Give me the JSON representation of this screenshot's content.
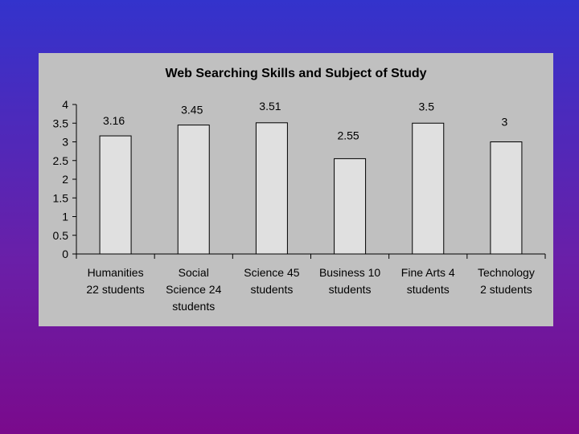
{
  "colors": {
    "panel_background": "#c0c0c0",
    "bar_fill": "#e0e0e0",
    "bar_stroke": "#000000"
  },
  "chart_data": {
    "type": "bar",
    "title": "Web Searching Skills  and Subject  of Study",
    "xlabel": "",
    "ylabel": "",
    "ylim": [
      0,
      4
    ],
    "yticks": [
      "0",
      "0.5",
      "1",
      "1.5",
      "2",
      "2.5",
      "3",
      "3.5",
      "4"
    ],
    "grid": false,
    "legend": "none",
    "categories": [
      "Humanities 22 students",
      "Social Science 24 students",
      "Science 45 students",
      "Business 10 students",
      "Fine Arts 4 students",
      "Technology 2 students"
    ],
    "category_lines": [
      [
        "Humanities",
        "22 students"
      ],
      [
        "Social",
        "Science 24",
        "students"
      ],
      [
        "Science 45",
        "students"
      ],
      [
        "Business 10",
        "students"
      ],
      [
        "Fine Arts 4",
        "students"
      ],
      [
        "Technology",
        "2 students"
      ]
    ],
    "values": [
      3.16,
      3.45,
      3.51,
      2.55,
      3.5,
      3
    ],
    "data_labels": [
      "3.16",
      "3.45",
      "3.51",
      "2.55",
      "3.5",
      "3"
    ]
  }
}
